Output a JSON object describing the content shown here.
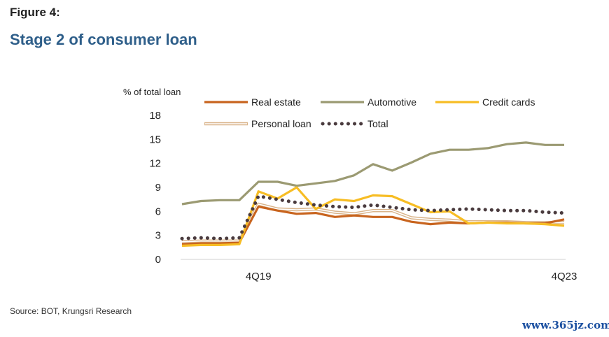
{
  "figure_label": "Figure 4:",
  "title": "Stage 2 of consumer loan",
  "source": "Source: BOT, Krungsri Research",
  "watermark": "www.365jz.com",
  "chart_data": {
    "type": "line",
    "ylabel": "% of total loan",
    "ylim": [
      0,
      18
    ],
    "yticks": [
      0,
      3,
      6,
      9,
      12,
      15,
      18
    ],
    "x_labels": [
      {
        "index": 4,
        "text": "4Q19"
      },
      {
        "index": 20,
        "text": "4Q23"
      }
    ],
    "n_points": 21,
    "legend_position": "top",
    "series": [
      {
        "name": "Real estate",
        "color": "#c8641e",
        "style": "solid",
        "values": [
          1.9,
          2.0,
          2.0,
          2.1,
          6.6,
          6.1,
          5.7,
          5.8,
          5.3,
          5.5,
          5.3,
          5.3,
          4.7,
          4.4,
          4.6,
          4.5,
          4.6,
          4.6,
          4.5,
          4.5,
          5.0
        ]
      },
      {
        "name": "Automotive",
        "color": "#9b9a72",
        "style": "solid",
        "values": [
          6.9,
          7.3,
          7.4,
          7.4,
          9.7,
          9.7,
          9.2,
          9.5,
          9.8,
          10.5,
          11.9,
          11.1,
          12.1,
          13.2,
          13.7,
          13.7,
          13.9,
          14.4,
          14.6,
          14.3,
          14.3
        ]
      },
      {
        "name": "Credit cards",
        "color": "#f7bd24",
        "style": "solid",
        "values": [
          1.7,
          1.8,
          1.8,
          1.9,
          8.5,
          7.6,
          9.0,
          6.3,
          7.5,
          7.3,
          8.0,
          7.9,
          6.9,
          5.9,
          6.0,
          4.5,
          4.6,
          4.5,
          4.5,
          4.4,
          4.2
        ]
      },
      {
        "name": "Personal loan",
        "color": "#d9b48a",
        "style": "double",
        "values": [
          2.2,
          2.3,
          2.3,
          2.3,
          6.9,
          6.3,
          6.2,
          6.3,
          5.9,
          5.7,
          6.1,
          6.1,
          5.2,
          5.0,
          4.9,
          4.7,
          4.7,
          4.7,
          4.6,
          4.6,
          4.6
        ]
      },
      {
        "name": "Total",
        "color": "#4a3b3e",
        "style": "dotted",
        "values": [
          2.6,
          2.7,
          2.6,
          2.7,
          7.9,
          7.5,
          7.1,
          6.8,
          6.6,
          6.5,
          6.8,
          6.5,
          6.2,
          6.1,
          6.2,
          6.3,
          6.2,
          6.1,
          6.1,
          5.9,
          5.8
        ]
      }
    ]
  }
}
